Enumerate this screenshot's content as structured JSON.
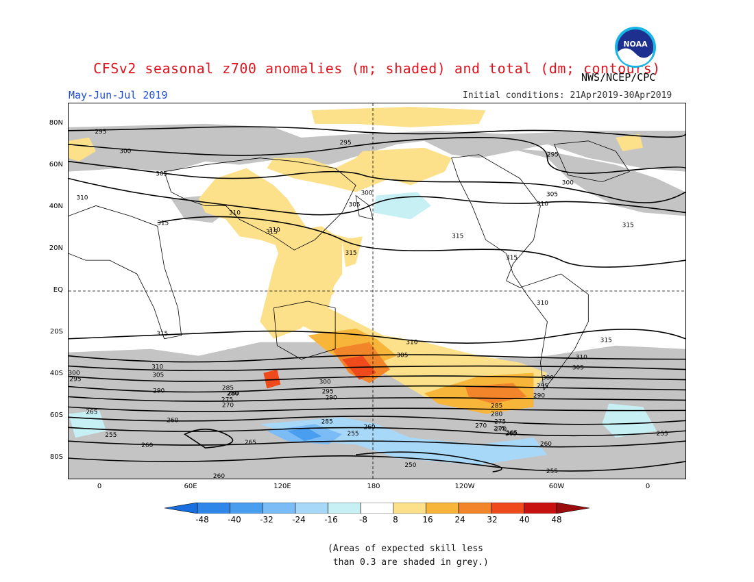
{
  "title": "CFSv2 seasonal z700 anomalies (m; shaded) and total (dm; contours)",
  "subtitle": "May-Jun-Jul 2019",
  "agency": "NWS/NCEP/CPC",
  "initial_conditions": "Initial conditions: 21Apr2019-30Apr2019",
  "logo_text": "NOAA",
  "lat_labels": [
    "80N",
    "60N",
    "40N",
    "20N",
    "EQ",
    "20S",
    "40S",
    "60S",
    "80S"
  ],
  "lon_labels": [
    "0",
    "60E",
    "120E",
    "180",
    "120W",
    "60W",
    "0"
  ],
  "colorbar": {
    "labels": [
      "-48",
      "-40",
      "-32",
      "-24",
      "-16",
      "-8",
      "8",
      "16",
      "24",
      "32",
      "40",
      "48"
    ],
    "colors": [
      "#1a6fe0",
      "#2e86e8",
      "#4a9ef0",
      "#7cbcf6",
      "#a8d8f8",
      "#c6f0f4",
      "#ffffff",
      "#fde08a",
      "#f7b63a",
      "#f2852a",
      "#ee4a1c",
      "#c81010",
      "#9b0c0c"
    ]
  },
  "contour_labels": [
    {
      "t": "295"
    },
    {
      "t": "300"
    },
    {
      "t": "305"
    },
    {
      "t": "310"
    },
    {
      "t": "315"
    },
    {
      "t": "310"
    },
    {
      "t": "315"
    },
    {
      "t": "295"
    },
    {
      "t": "300"
    },
    {
      "t": "305"
    },
    {
      "t": "310"
    },
    {
      "t": "315"
    },
    {
      "t": "315"
    },
    {
      "t": "295"
    },
    {
      "t": "300"
    },
    {
      "t": "305"
    },
    {
      "t": "310"
    },
    {
      "t": "315"
    },
    {
      "t": "315"
    },
    {
      "t": "310"
    },
    {
      "t": "315"
    },
    {
      "t": "315"
    },
    {
      "t": "310"
    },
    {
      "t": "305"
    },
    {
      "t": "310"
    },
    {
      "t": "305"
    },
    {
      "t": "300"
    },
    {
      "t": "295"
    },
    {
      "t": "290"
    },
    {
      "t": "285"
    },
    {
      "t": "280"
    },
    {
      "t": "275"
    },
    {
      "t": "270"
    },
    {
      "t": "265"
    },
    {
      "t": "260"
    },
    {
      "t": "255"
    },
    {
      "t": "250"
    },
    {
      "t": "300"
    },
    {
      "t": "295"
    },
    {
      "t": "290"
    },
    {
      "t": "285"
    },
    {
      "t": "280"
    },
    {
      "t": "275"
    },
    {
      "t": "270"
    },
    {
      "t": "265"
    },
    {
      "t": "260"
    },
    {
      "t": "255"
    },
    {
      "t": "310"
    },
    {
      "t": "305"
    },
    {
      "t": "300"
    },
    {
      "t": "295"
    },
    {
      "t": "290"
    },
    {
      "t": "285"
    },
    {
      "t": "280"
    },
    {
      "t": "275"
    },
    {
      "t": "270"
    },
    {
      "t": "265"
    },
    {
      "t": "260"
    },
    {
      "t": "255"
    },
    {
      "t": "260"
    },
    {
      "t": "265"
    },
    {
      "t": "255"
    },
    {
      "t": "260"
    }
  ],
  "note": "(Areas of expected skill less\n than 0.3 are shaded in grey.)"
}
